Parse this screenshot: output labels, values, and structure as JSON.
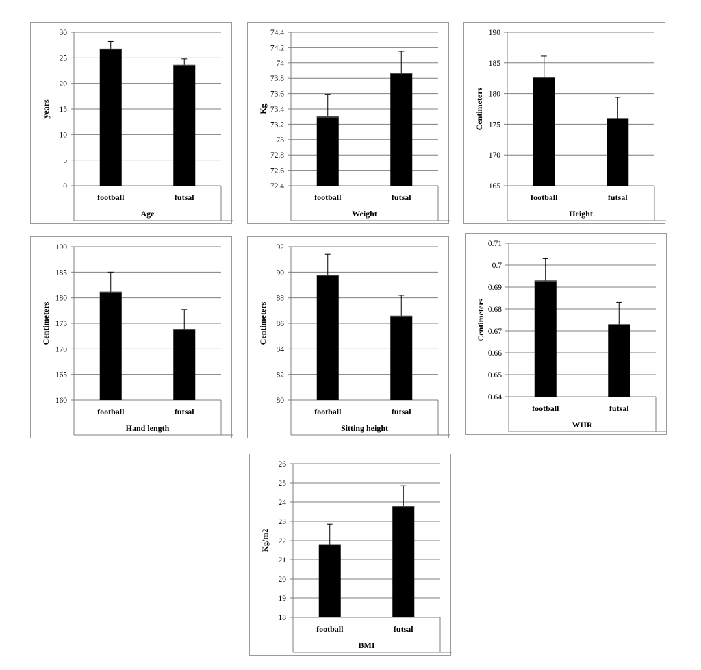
{
  "chart_data": [
    {
      "type": "bar",
      "categories": [
        "football",
        "futsal"
      ],
      "values": [
        26.8,
        23.6
      ],
      "errors": [
        1.4,
        1.2
      ],
      "xlabel": "Age",
      "ylabel": "years",
      "ylim": [
        0,
        30
      ],
      "yticks": [
        "0",
        "5",
        "10",
        "15",
        "20",
        "25",
        "30"
      ],
      "tick_values": [
        0,
        5,
        10,
        15,
        20,
        25,
        30
      ],
      "grid": true,
      "bar_color": "#000000"
    },
    {
      "type": "bar",
      "categories": [
        "football",
        "futsal"
      ],
      "values": [
        73.3,
        73.87
      ],
      "errors": [
        0.29,
        0.28
      ],
      "xlabel": "Weight",
      "ylabel": "Kg",
      "ylim": [
        72.4,
        74.4
      ],
      "yticks": [
        "72.4",
        "72.6",
        "72.8",
        "73",
        "73.2",
        "73.4",
        "73.6",
        "73.8",
        "74",
        "74.2",
        "74.4"
      ],
      "tick_values": [
        72.4,
        72.6,
        72.8,
        73,
        73.2,
        73.4,
        73.6,
        73.8,
        74,
        74.2,
        74.4
      ],
      "grid": true,
      "bar_color": "#000000"
    },
    {
      "type": "bar",
      "categories": [
        "football",
        "futsal"
      ],
      "values": [
        182.7,
        176.0
      ],
      "errors": [
        3.4,
        3.4
      ],
      "xlabel": "Height",
      "ylabel": "Centimeters",
      "ylim": [
        165,
        190
      ],
      "yticks": [
        "165",
        "170",
        "175",
        "180",
        "185",
        "190"
      ],
      "tick_values": [
        165,
        170,
        175,
        180,
        185,
        190
      ],
      "grid": true,
      "bar_color": "#000000"
    },
    {
      "type": "bar",
      "categories": [
        "football",
        "futsal"
      ],
      "values": [
        181.2,
        173.9
      ],
      "errors": [
        3.8,
        3.8
      ],
      "xlabel": "Hand length",
      "ylabel": "Centimeters",
      "ylim": [
        160,
        190
      ],
      "yticks": [
        "160",
        "165",
        "170",
        "175",
        "180",
        "185",
        "190"
      ],
      "tick_values": [
        160,
        165,
        170,
        175,
        180,
        185,
        190
      ],
      "grid": true,
      "bar_color": "#000000"
    },
    {
      "type": "bar",
      "categories": [
        "football",
        "futsal"
      ],
      "values": [
        89.8,
        86.6
      ],
      "errors": [
        1.6,
        1.6
      ],
      "xlabel": "Sitting height",
      "ylabel": "Centimeters",
      "ylim": [
        80,
        92
      ],
      "yticks": [
        "80",
        "82",
        "84",
        "86",
        "88",
        "90",
        "92"
      ],
      "tick_values": [
        80,
        82,
        84,
        86,
        88,
        90,
        92
      ],
      "grid": true,
      "bar_color": "#000000"
    },
    {
      "type": "bar",
      "categories": [
        "football",
        "futsal"
      ],
      "values": [
        0.693,
        0.673
      ],
      "errors": [
        0.01,
        0.01
      ],
      "xlabel": "WHR",
      "ylabel": "Centimeters",
      "ylim": [
        0.64,
        0.71
      ],
      "yticks": [
        "0.64",
        "0.65",
        "0.66",
        "0.67",
        "0.68",
        "0.69",
        "0.7",
        "0.71"
      ],
      "tick_values": [
        0.64,
        0.65,
        0.66,
        0.67,
        0.68,
        0.69,
        0.7,
        0.71
      ],
      "grid": true,
      "bar_color": "#000000"
    },
    {
      "type": "bar",
      "categories": [
        "football",
        "futsal"
      ],
      "values": [
        21.8,
        23.8
      ],
      "errors": [
        1.05,
        1.05
      ],
      "xlabel": "BMI",
      "ylabel": "Kg/m2",
      "ylim": [
        18,
        26
      ],
      "yticks": [
        "18",
        "19",
        "20",
        "21",
        "22",
        "23",
        "24",
        "25",
        "26"
      ],
      "tick_values": [
        18,
        19,
        20,
        21,
        22,
        23,
        24,
        25,
        26
      ],
      "grid": true,
      "bar_color": "#000000"
    }
  ]
}
